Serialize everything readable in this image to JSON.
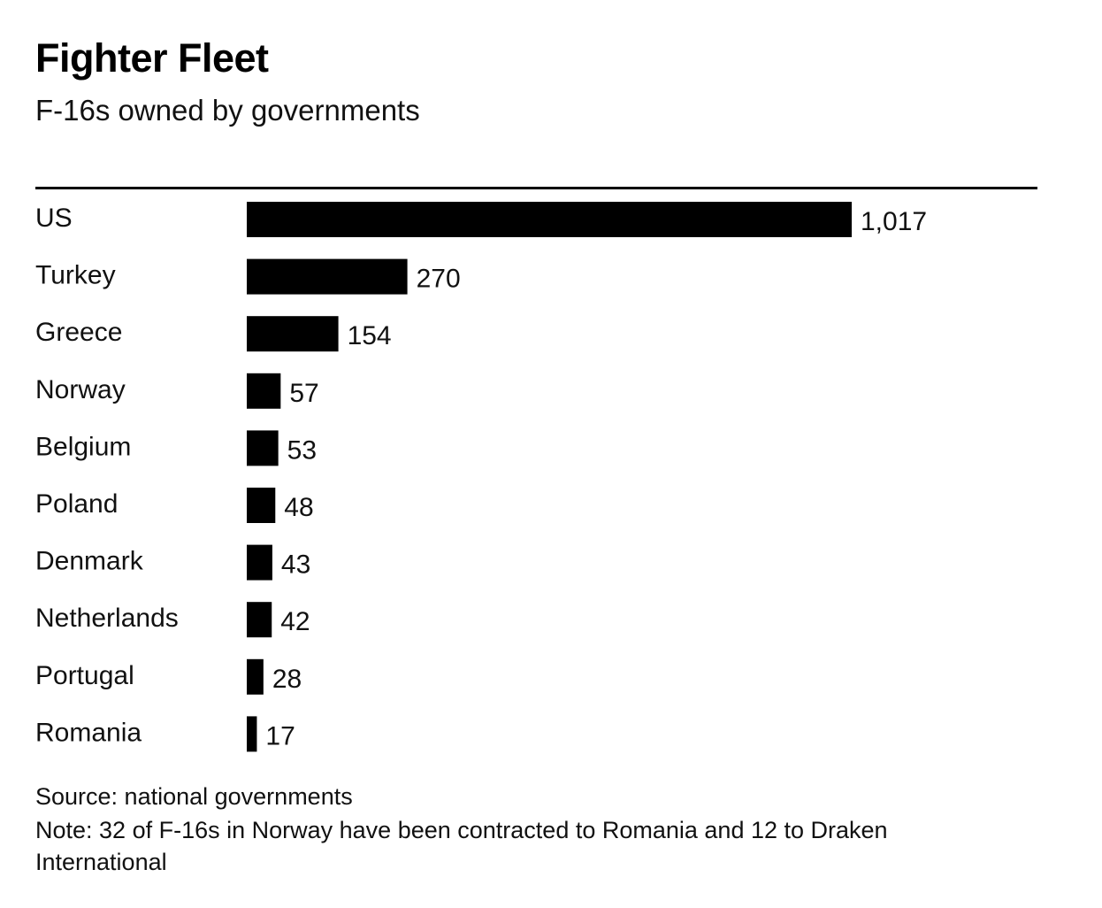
{
  "chart_data": {
    "type": "bar",
    "orientation": "horizontal",
    "title": "Fighter Fleet",
    "subtitle": "F-16s owned by governments",
    "categories": [
      "US",
      "Turkey",
      "Greece",
      "Norway",
      "Belgium",
      "Poland",
      "Denmark",
      "Netherlands",
      "Portugal",
      "Romania"
    ],
    "values": [
      1017,
      270,
      154,
      57,
      53,
      48,
      43,
      42,
      28,
      17
    ],
    "value_labels": [
      "1,017",
      "270",
      "154",
      "57",
      "53",
      "48",
      "43",
      "42",
      "28",
      "17"
    ],
    "bar_color": "#000000",
    "grid": false,
    "xlim": [
      0,
      1017
    ],
    "source": "Source: national governments",
    "note": "Note: 32 of F-16s in Norway have been contracted to Romania and 12 to Draken International"
  }
}
